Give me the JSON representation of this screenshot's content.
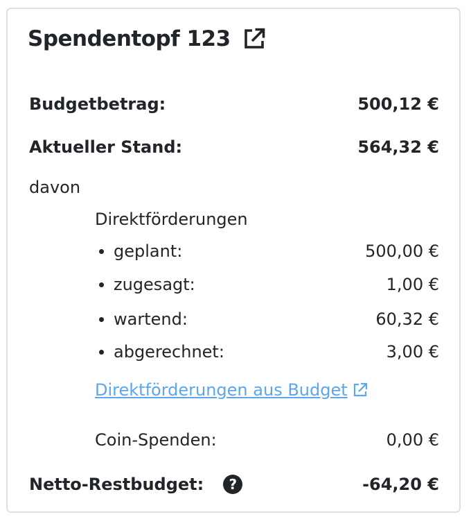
{
  "title": "Spendentopf 123",
  "budget": {
    "label": "Budgetbetrag:",
    "value": "500,12 €"
  },
  "current": {
    "label": "Aktueller Stand:",
    "value": "564,32 €"
  },
  "davon": "davon",
  "direct": {
    "heading": "Direktförderungen",
    "items": [
      {
        "label": "geplant:",
        "value": "500,00 €"
      },
      {
        "label": "zugesagt:",
        "value": "1,00 €"
      },
      {
        "label": "wartend:",
        "value": "60,32 €"
      },
      {
        "label": "abgerechnet:",
        "value": "3,00 €"
      }
    ],
    "link": "Direktförderungen aus Budget"
  },
  "coin": {
    "label": "Coin-Spenden:",
    "value": "0,00 €"
  },
  "net": {
    "label": "Netto-Restbudget:",
    "value": "-64,20 €",
    "help": "?"
  },
  "colors": {
    "link": "#5aa6ef",
    "text": "#212529"
  }
}
